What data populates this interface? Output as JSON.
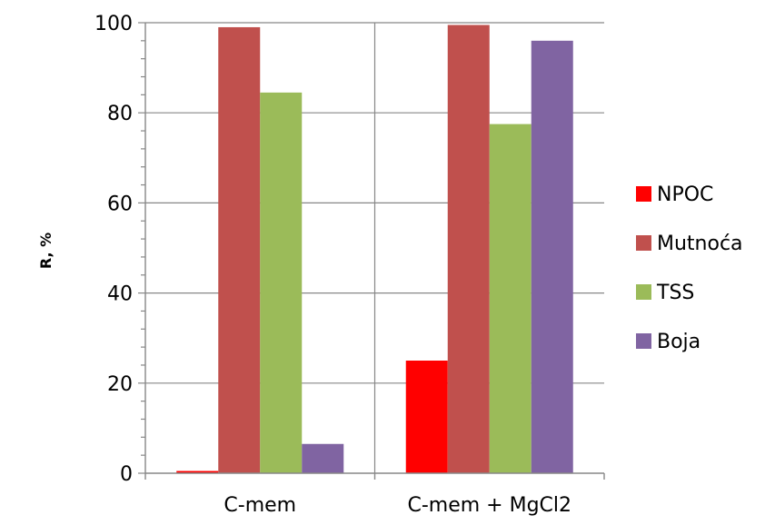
{
  "chart_data": {
    "type": "bar",
    "title": "",
    "xlabel": "",
    "ylabel": "R, %",
    "ylim": [
      0,
      100
    ],
    "yticks": [
      0,
      20,
      40,
      60,
      80,
      100
    ],
    "categories": [
      "C-mem",
      "C-mem + MgCl2"
    ],
    "series": [
      {
        "name": "NPOC",
        "color": "#ff0000",
        "values": [
          0.5,
          25
        ]
      },
      {
        "name": "Mutnoća",
        "color": "#c0504d",
        "values": [
          99,
          99.5
        ]
      },
      {
        "name": "TSS",
        "color": "#9bbb59",
        "values": [
          84.5,
          77.5
        ]
      },
      {
        "name": "Boja",
        "color": "#8064a2",
        "values": [
          6.5,
          96
        ]
      }
    ],
    "grid": true,
    "legend_position": "right"
  }
}
